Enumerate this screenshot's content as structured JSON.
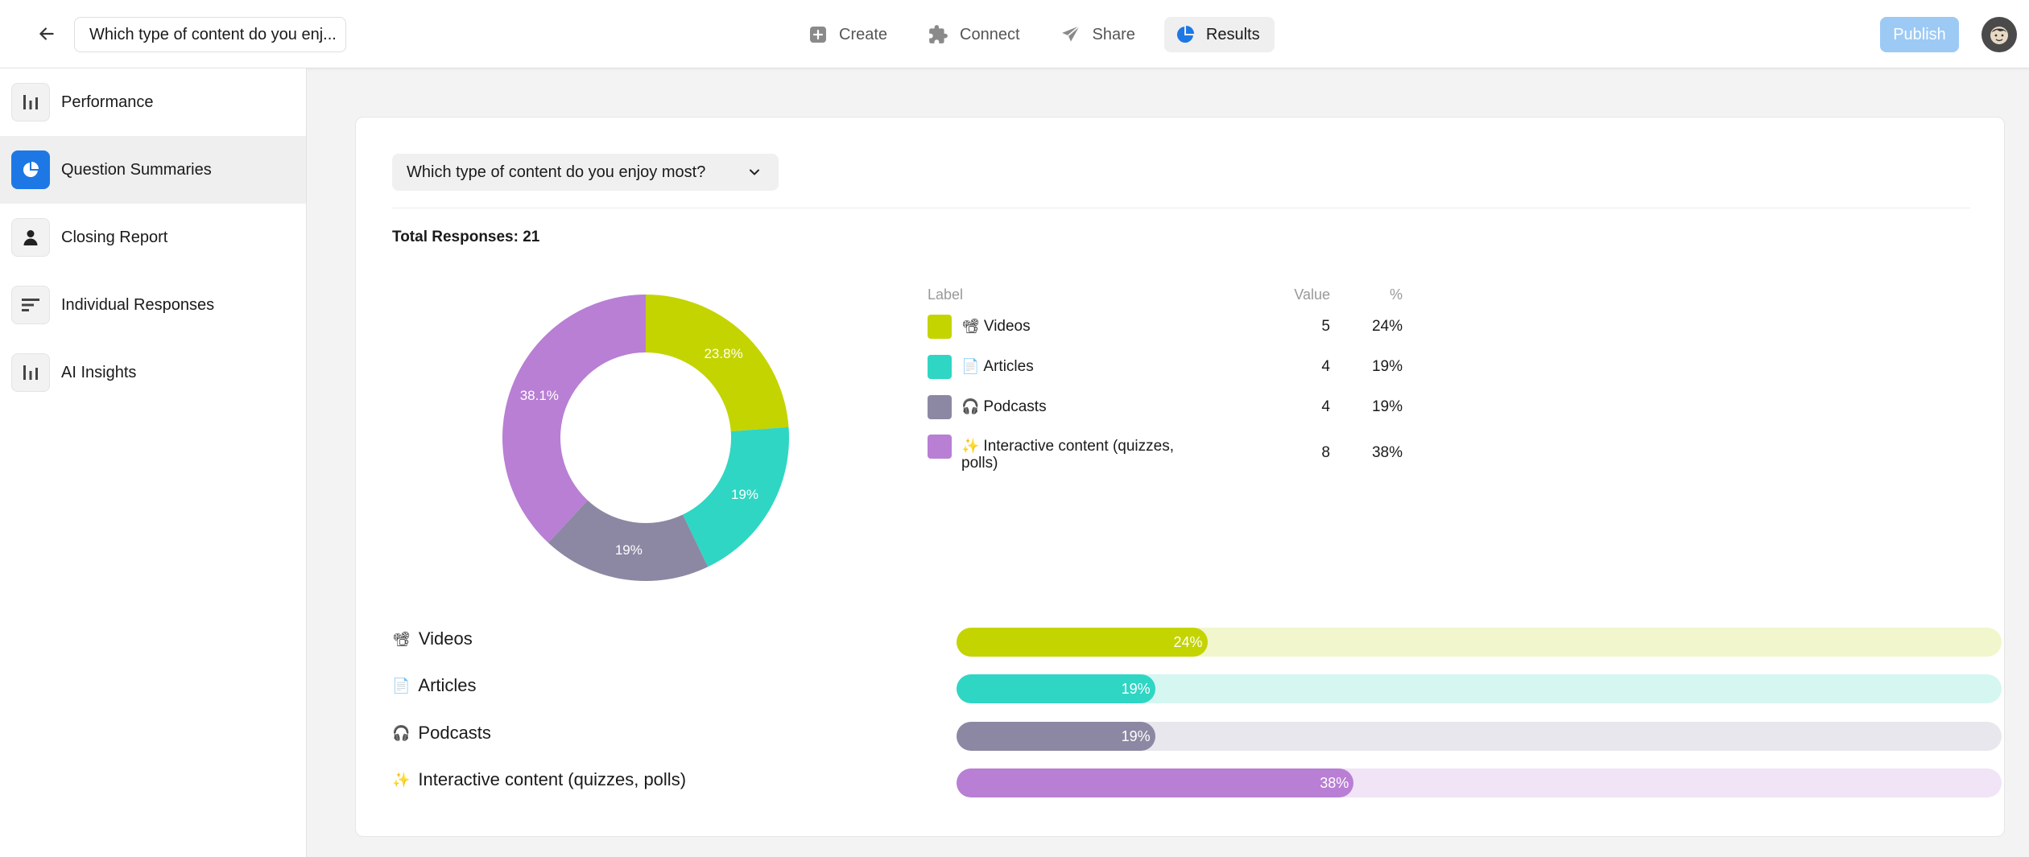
{
  "header": {
    "form_title": "Which type of content do you enj...",
    "nav": [
      {
        "label": "Create",
        "icon": "plus-square-icon"
      },
      {
        "label": "Connect",
        "icon": "puzzle-icon"
      },
      {
        "label": "Share",
        "icon": "send-icon"
      },
      {
        "label": "Results",
        "icon": "pie-chart-icon"
      }
    ],
    "publish_label": "Publish"
  },
  "sidebar": {
    "items": [
      {
        "label": "Performance",
        "icon": "bar-chart-icon"
      },
      {
        "label": "Question Summaries",
        "icon": "pie-chart-icon"
      },
      {
        "label": "Closing Report",
        "icon": "person-icon"
      },
      {
        "label": "Individual Responses",
        "icon": "lines-icon"
      },
      {
        "label": "AI Insights",
        "icon": "bar-chart-icon"
      }
    ]
  },
  "main": {
    "question_select": "Which type of content do you enjoy most?",
    "total_responses": "Total Responses: 21",
    "legend_headers": {
      "label": "Label",
      "value": "Value",
      "pct": "%"
    }
  },
  "colors": {
    "accent": "#1d78e6",
    "videos": "#c3d400",
    "articles": "#2fd6c3",
    "podcasts": "#8c88a3",
    "interactive": "#b87fd4"
  },
  "chart_data": {
    "type": "pie",
    "donut": true,
    "categories": [
      "Videos",
      "Articles",
      "Podcasts",
      "Interactive content (quizzes, polls)"
    ],
    "emojis": [
      "📽",
      "📄",
      "🎧",
      "✨"
    ],
    "values": [
      5,
      4,
      4,
      8
    ],
    "percent_labels": [
      "23.8%",
      "19%",
      "19%",
      "38.1%"
    ],
    "legend_percents": [
      "24%",
      "19%",
      "19%",
      "38%"
    ],
    "bar_percents": [
      24,
      19,
      19,
      38
    ],
    "bar_labels": [
      "24%",
      "19%",
      "19%",
      "38%"
    ]
  }
}
